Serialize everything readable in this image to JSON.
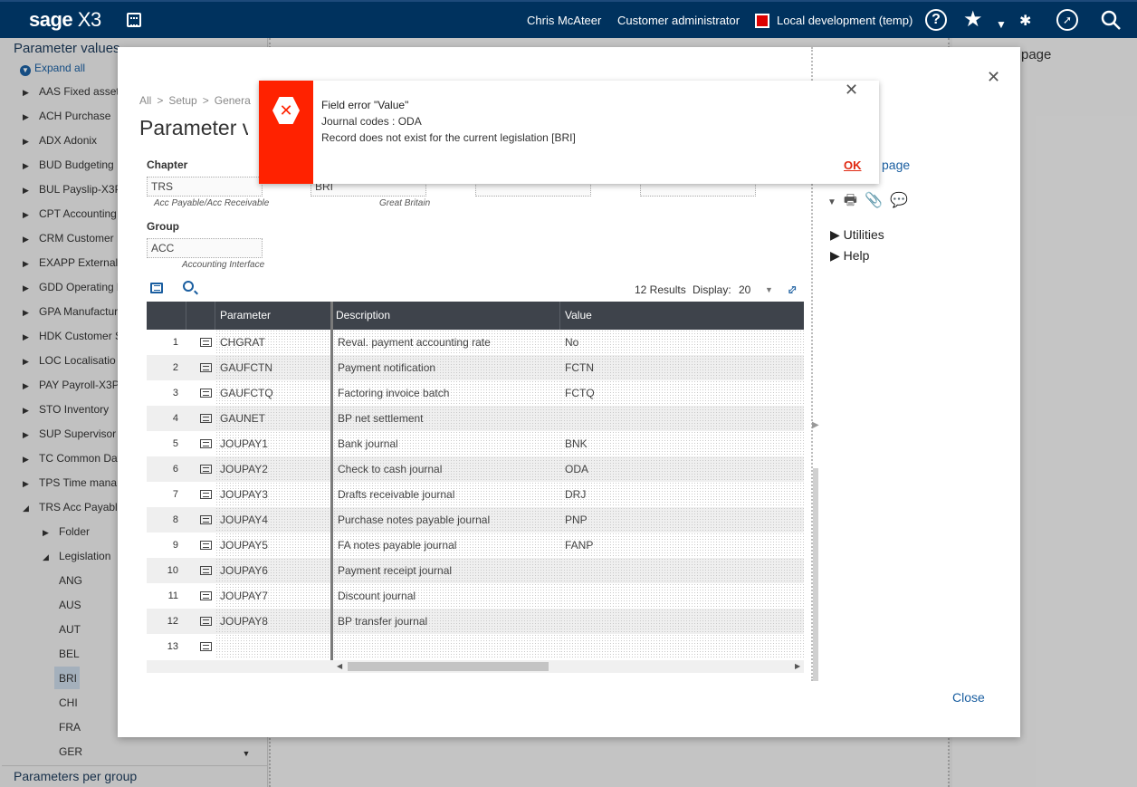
{
  "topbar": {
    "logo": "sage",
    "logo_product": "X3",
    "user": "Chris McAteer",
    "role": "Customer administrator",
    "environment": "Local development (temp)",
    "icons": [
      "calendar-icon",
      "help-icon",
      "star-icon",
      "bug-icon",
      "compass-icon",
      "search-icon"
    ]
  },
  "leftpanel": {
    "title": "Parameter values",
    "expand_all": "Expand all",
    "items": [
      {
        "label": "AAS Fixed asset"
      },
      {
        "label": "ACH Purchase"
      },
      {
        "label": "ADX Adonix"
      },
      {
        "label": "BUD Budgeting"
      },
      {
        "label": "BUL Payslip-X3P"
      },
      {
        "label": "CPT Accounting"
      },
      {
        "label": "CRM Customer F"
      },
      {
        "label": "EXAPP External"
      },
      {
        "label": "GDD Operating b"
      },
      {
        "label": "GPA Manufactur"
      },
      {
        "label": "HDK Customer S"
      },
      {
        "label": "LOC Localisatio"
      },
      {
        "label": "PAY Payroll-X3P"
      },
      {
        "label": "STO Inventory"
      },
      {
        "label": "SUP Supervisor"
      },
      {
        "label": "TC Common Dat"
      },
      {
        "label": "TPS Time mana"
      },
      {
        "label": "TRS Acc Payable"
      }
    ],
    "sub_items": [
      {
        "label": "Folder"
      },
      {
        "label": "Legislation"
      }
    ],
    "legislations": [
      "ANG",
      "AUS",
      "AUT",
      "BEL",
      "BRI",
      "CHI",
      "FRA",
      "GER"
    ],
    "selected_legislation": "BRI",
    "bottom": "Parameters per group"
  },
  "background": {
    "breadcrumb_partial": "All  >  Setup  >  General parameters",
    "right_page": "page"
  },
  "modal": {
    "breadcrumb": [
      "All",
      "Setup",
      "Genera"
    ],
    "title": "Parameter va",
    "chapter_label": "Chapter",
    "chapter_value": "TRS",
    "chapter_hint": "Acc Payable/Acc Receivable",
    "legislation_value": "BRI",
    "legislation_hint": "Great Britain",
    "group_label": "Group",
    "group_value": "ACC",
    "group_hint": "Accounting Interface",
    "results": "12 Results",
    "display_label": "Display:",
    "display_value": "20",
    "columns": [
      "Parameter",
      "Description",
      "Value"
    ],
    "rows": [
      {
        "n": "1",
        "param": "CHGRAT",
        "desc": "Reval. payment accounting rate",
        "value": "No"
      },
      {
        "n": "2",
        "param": "GAUFCTN",
        "desc": "Payment notification",
        "value": "FCTN"
      },
      {
        "n": "3",
        "param": "GAUFCTQ",
        "desc": "Factoring invoice batch",
        "value": "FCTQ"
      },
      {
        "n": "4",
        "param": "GAUNET",
        "desc": "BP net settlement",
        "value": ""
      },
      {
        "n": "5",
        "param": "JOUPAY1",
        "desc": "Bank journal",
        "value": "BNK"
      },
      {
        "n": "6",
        "param": "JOUPAY2",
        "desc": "Check to cash journal",
        "value": "ODA"
      },
      {
        "n": "7",
        "param": "JOUPAY3",
        "desc": "Drafts receivable journal",
        "value": "DRJ"
      },
      {
        "n": "8",
        "param": "JOUPAY4",
        "desc": "Purchase notes payable journal",
        "value": "PNP"
      },
      {
        "n": "9",
        "param": "JOUPAY5",
        "desc": "FA notes payable journal",
        "value": "FANP"
      },
      {
        "n": "10",
        "param": "JOUPAY6",
        "desc": "Payment receipt journal",
        "value": ""
      },
      {
        "n": "11",
        "param": "JOUPAY7",
        "desc": "Discount journal",
        "value": ""
      },
      {
        "n": "12",
        "param": "JOUPAY8",
        "desc": "BP transfer journal",
        "value": ""
      },
      {
        "n": "13",
        "param": "",
        "desc": "",
        "value": ""
      }
    ],
    "side_page": "page",
    "utilities": "Utilities",
    "help": "Help",
    "close": "Close"
  },
  "error_dialog": {
    "title": "Field error \"Value\"",
    "line1": "Journal codes : ODA",
    "line2": "Record does not exist for the current legislation [BRI]",
    "ok": "OK",
    "accent": "#ff2200"
  }
}
